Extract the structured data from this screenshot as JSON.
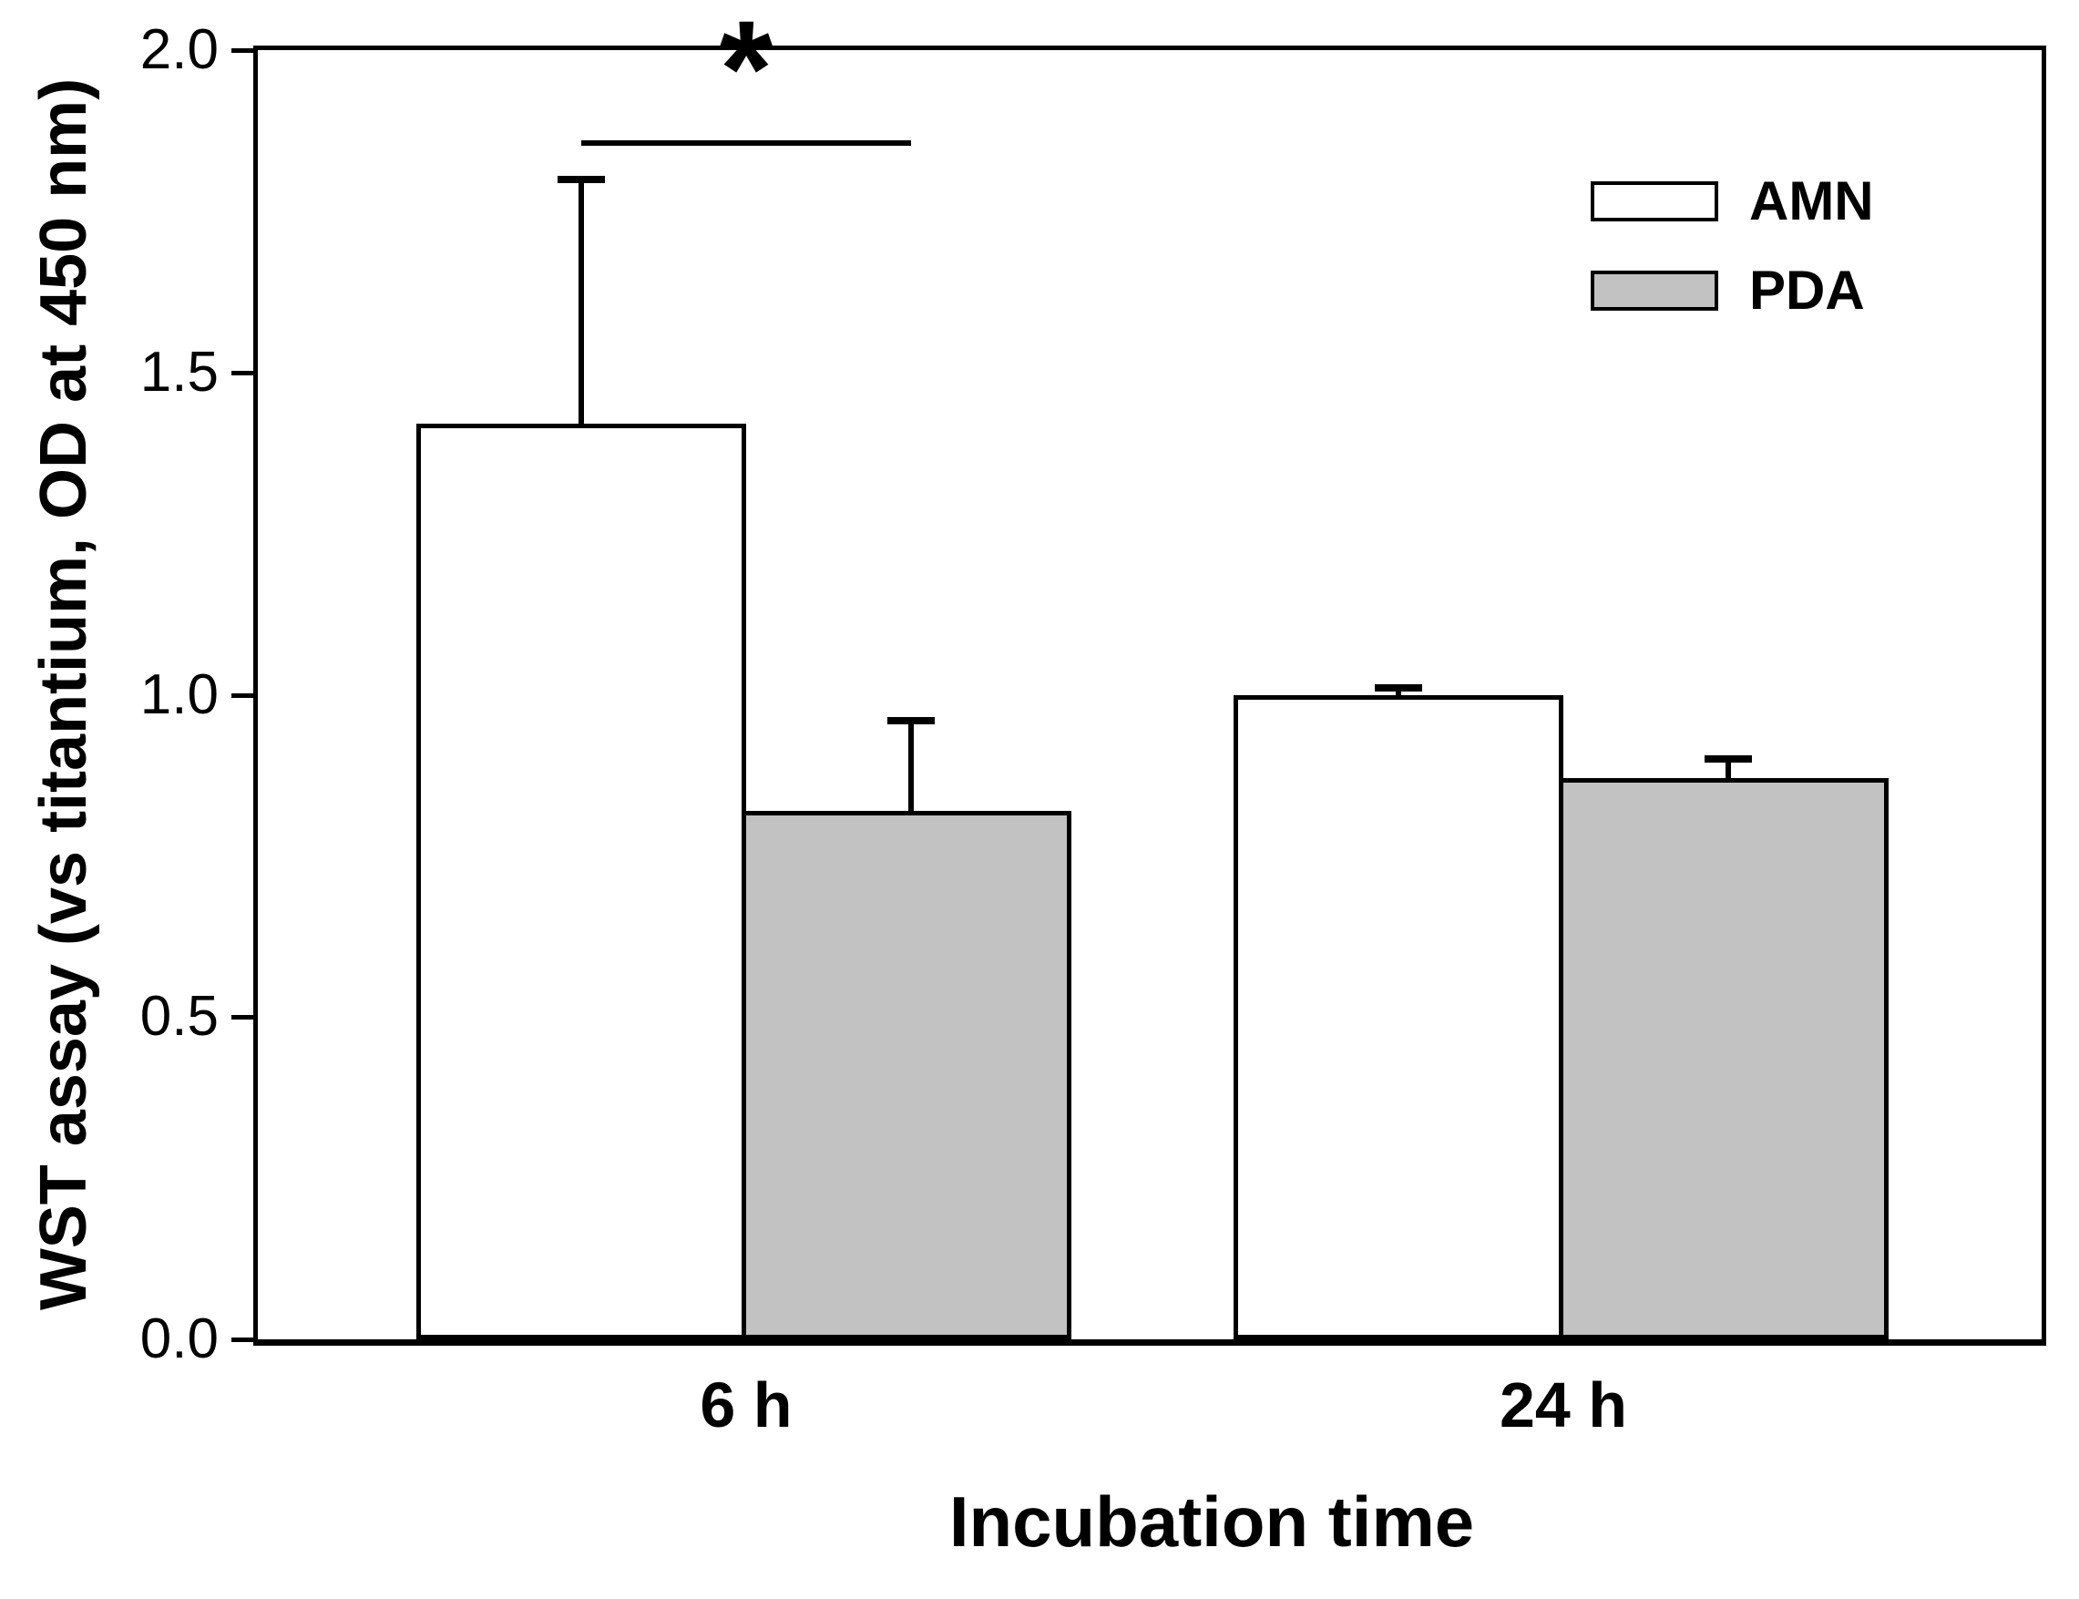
{
  "figure": {
    "background": "#ffffff",
    "line_color": "#000000"
  },
  "y_axis": {
    "tick_labels": [
      "2.0",
      "1.5",
      "1.0",
      "0.5",
      "0.0"
    ]
  },
  "chart_data": {
    "type": "bar",
    "title": "",
    "categories": [
      "6 h",
      "24 h"
    ],
    "series": [
      {
        "name": "AMN",
        "fill": "#ffffff",
        "values": [
          1.42,
          1.0
        ],
        "errors": [
          0.38,
          0.01
        ]
      },
      {
        "name": "PDA",
        "fill": "#c2c2c2",
        "values": [
          0.82,
          0.87
        ],
        "errors": [
          0.14,
          0.03
        ]
      }
    ],
    "xlabel": "Incubation time",
    "ylabel": "WST assay (vs titantium, OD at 450 nm)",
    "ylim": [
      0.0,
      2.0
    ],
    "yticks": [
      2.0,
      1.5,
      1.0,
      0.5,
      0.0
    ],
    "grid": false,
    "legend_position": "top-right-inside",
    "error_bars": "upper-only-with-cap",
    "significance": {
      "label": "*",
      "category": "6 h",
      "between": [
        "AMN",
        "PDA"
      ],
      "line_y": 1.86
    }
  }
}
